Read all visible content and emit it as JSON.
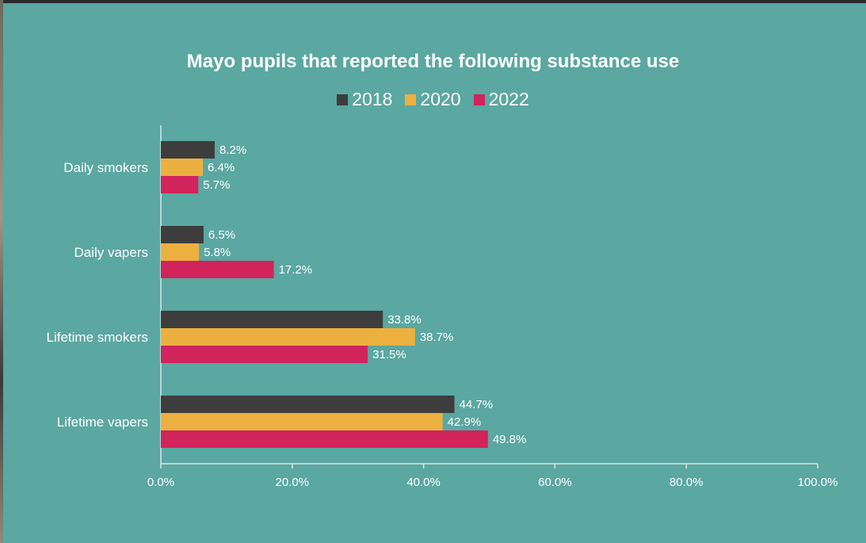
{
  "colors": {
    "background": "#5ba7a2",
    "series_2018": "#3d3d3d",
    "series_2020": "#ecb040",
    "series_2022": "#d1235c",
    "text": "#ffffff",
    "axis": "#d6e8e6"
  },
  "chart_data": {
    "type": "bar",
    "orientation": "horizontal",
    "title": "Mayo pupils that reported the following substance use",
    "categories": [
      "Daily smokers",
      "Daily vapers",
      "Lifetime smokers",
      "Lifetime vapers"
    ],
    "series": [
      {
        "name": "2018",
        "values": [
          8.2,
          6.5,
          33.8,
          44.7
        ],
        "labels": [
          "8.2%",
          "6.5%",
          "33.8%",
          "44.7%"
        ]
      },
      {
        "name": "2020",
        "values": [
          6.4,
          5.8,
          38.7,
          42.9
        ],
        "labels": [
          "6.4%",
          "5.8%",
          "38.7%",
          "42.9%"
        ]
      },
      {
        "name": "2022",
        "values": [
          5.7,
          17.2,
          31.5,
          49.8
        ],
        "labels": [
          "5.7%",
          "17.2%",
          "31.5%",
          "49.8%"
        ]
      }
    ],
    "xlim": [
      0,
      100
    ],
    "xticks": [
      0,
      20,
      40,
      60,
      80,
      100
    ],
    "xtick_labels": [
      "0.0%",
      "20.0%",
      "40.0%",
      "60.0%",
      "80.0%",
      "100.0%"
    ],
    "grid": false,
    "legend_position": "top"
  }
}
